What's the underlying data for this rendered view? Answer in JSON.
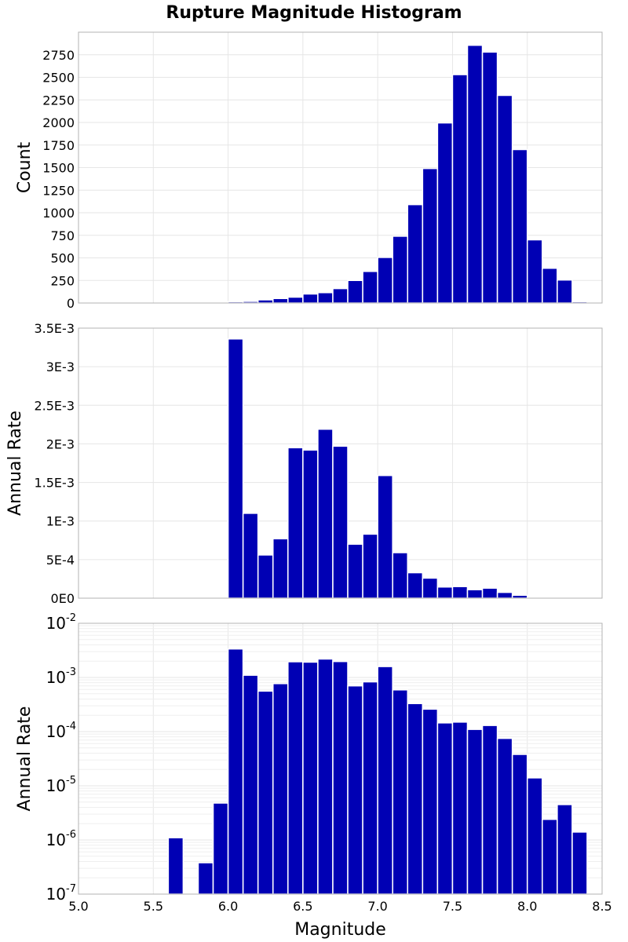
{
  "title": "Rupture Magnitude Histogram",
  "colors": {
    "bar": "#0000b4",
    "grid": "#e6e6e6",
    "frame": "#b3b3b3"
  },
  "chart_data": [
    {
      "type": "bar",
      "ylabel": "Count",
      "xlim": [
        5.0,
        8.5
      ],
      "ylim": [
        0,
        3000
      ],
      "ytick_values": [
        0,
        250,
        500,
        750,
        1000,
        1250,
        1500,
        1750,
        2000,
        2250,
        2500,
        2750
      ],
      "ytick_labels": [
        "0",
        "250",
        "500",
        "750",
        "1000",
        "1250",
        "1500",
        "1750",
        "2000",
        "2250",
        "2500",
        "2750"
      ],
      "grid": true,
      "x": [
        5.65,
        5.75,
        5.85,
        5.95,
        6.05,
        6.15,
        6.25,
        6.35,
        6.45,
        6.55,
        6.65,
        6.75,
        6.85,
        6.95,
        7.05,
        7.15,
        7.25,
        7.35,
        7.45,
        7.55,
        7.65,
        7.75,
        7.85,
        7.95,
        8.05,
        8.15,
        8.25,
        8.35
      ],
      "values": [
        2,
        0,
        3,
        10,
        15,
        18,
        35,
        50,
        65,
        100,
        115,
        160,
        250,
        350,
        505,
        740,
        1090,
        1490,
        1995,
        2530,
        2855,
        2780,
        2300,
        1700,
        700,
        385,
        255,
        15
      ]
    },
    {
      "type": "bar",
      "ylabel": "Annual Rate",
      "xlim": [
        5.0,
        8.5
      ],
      "ylim": [
        0,
        0.0035
      ],
      "ytick_values": [
        0,
        0.0005,
        0.001,
        0.0015,
        0.002,
        0.0025,
        0.003,
        0.0035
      ],
      "ytick_labels": [
        "0E0",
        "5E-4",
        "1E-3",
        "1.5E-3",
        "2E-3",
        "2.5E-3",
        "3E-3",
        "3.5E-3"
      ],
      "grid": true,
      "x": [
        5.65,
        5.75,
        5.85,
        5.95,
        6.05,
        6.15,
        6.25,
        6.35,
        6.45,
        6.55,
        6.65,
        6.75,
        6.85,
        6.95,
        7.05,
        7.15,
        7.25,
        7.35,
        7.45,
        7.55,
        7.65,
        7.75,
        7.85,
        7.95,
        8.05,
        8.15,
        8.25,
        8.35
      ],
      "values": [
        1.1e-06,
        0,
        3.8e-07,
        4.8e-06,
        0.00336,
        0.0011,
        0.00056,
        0.00077,
        0.00195,
        0.00192,
        0.00219,
        0.00197,
        0.0007,
        0.00083,
        0.00159,
        0.00059,
        0.00033,
        0.00026,
        0.000145,
        0.00015,
        0.00011,
        0.00013,
        7.5e-05,
        3.8e-05,
        1.4e-05,
        2.4e-06,
        4.5e-06,
        1.4e-06
      ]
    },
    {
      "type": "bar",
      "scale": "log",
      "ylabel": "Annual Rate",
      "xlabel": "Magnitude",
      "xlim": [
        5.0,
        8.5
      ],
      "ylim": [
        1e-07,
        0.01
      ],
      "ytick_bases": [
        "10",
        "10",
        "10",
        "10",
        "10",
        "10"
      ],
      "ytick_exps": [
        "-7",
        "-6",
        "-5",
        "-4",
        "-3",
        "-2"
      ],
      "xtick_values": [
        5.0,
        5.5,
        6.0,
        6.5,
        7.0,
        7.5,
        8.0,
        8.5
      ],
      "xtick_labels": [
        "5.0",
        "5.5",
        "6.0",
        "6.5",
        "7.0",
        "7.5",
        "8.0",
        "8.5"
      ],
      "grid": true,
      "x": [
        5.65,
        5.75,
        5.85,
        5.95,
        6.05,
        6.15,
        6.25,
        6.35,
        6.45,
        6.55,
        6.65,
        6.75,
        6.85,
        6.95,
        7.05,
        7.15,
        7.25,
        7.35,
        7.45,
        7.55,
        7.65,
        7.75,
        7.85,
        7.95,
        8.05,
        8.15,
        8.25,
        8.35
      ],
      "values": [
        1.1e-06,
        0,
        3.8e-07,
        4.8e-06,
        0.00336,
        0.0011,
        0.00056,
        0.00077,
        0.00195,
        0.00192,
        0.00219,
        0.00197,
        0.0007,
        0.00083,
        0.00159,
        0.00059,
        0.00033,
        0.00026,
        0.000145,
        0.00015,
        0.00011,
        0.00013,
        7.5e-05,
        3.8e-05,
        1.4e-05,
        2.4e-06,
        4.5e-06,
        1.4e-06
      ]
    }
  ]
}
